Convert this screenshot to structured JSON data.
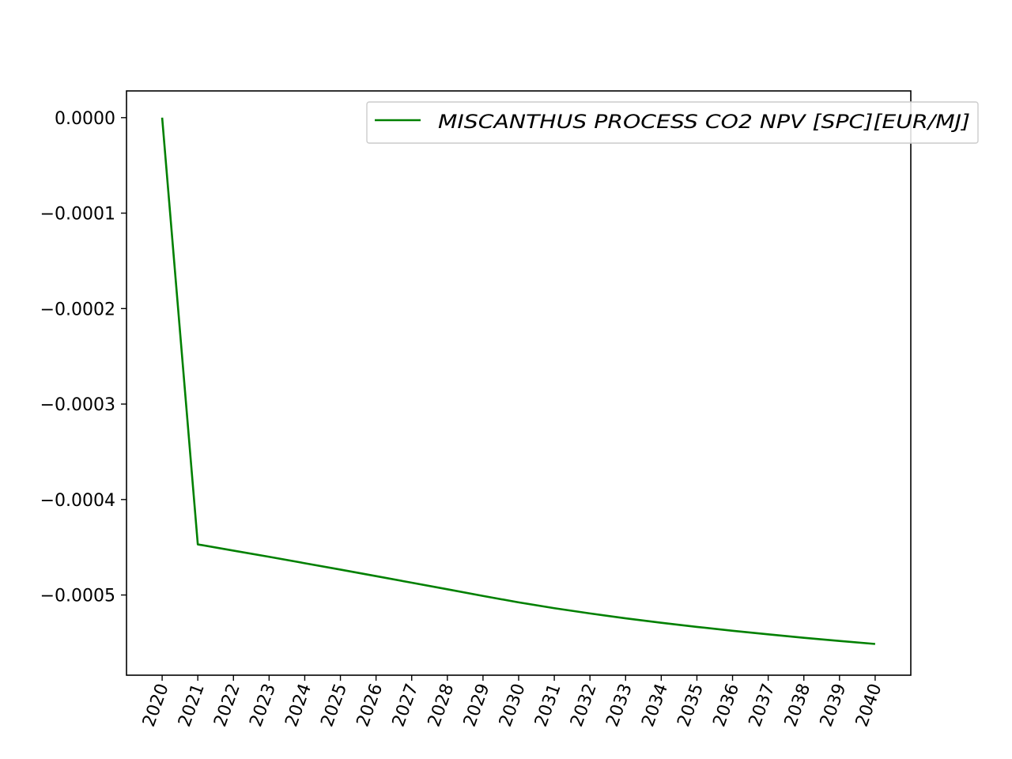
{
  "chart_data": {
    "type": "line",
    "x": [
      "2020",
      "2021",
      "2022",
      "2023",
      "2024",
      "2025",
      "2026",
      "2027",
      "2028",
      "2029",
      "2030",
      "2031",
      "2032",
      "2033",
      "2034",
      "2035",
      "2036",
      "2037",
      "2038",
      "2039",
      "2040"
    ],
    "series": [
      {
        "name": "MISCANTHUS PROCESS CO2 NPV [SPC][EUR/MJ]",
        "color": "#008000",
        "values": [
          0.0,
          -0.000447,
          -0.0004535,
          -0.00046,
          -0.0004667,
          -0.0004734,
          -0.0004802,
          -0.0004871,
          -0.000494,
          -0.000501,
          -0.0005077,
          -0.0005138,
          -0.0005193,
          -0.0005244,
          -0.0005291,
          -0.0005334,
          -0.0005375,
          -0.0005412,
          -0.0005448,
          -0.0005481,
          -0.0005513
        ]
      }
    ],
    "yticks": [
      0.0,
      -0.0001,
      -0.0002,
      -0.0003,
      -0.0004,
      -0.0005
    ],
    "ytick_labels": [
      "0.0000",
      "−0.0001",
      "−0.0002",
      "−0.0003",
      "−0.0004",
      "−0.0005"
    ],
    "ylim": [
      -0.000584,
      2.8e-05
    ],
    "xlim": [
      2019,
      2041
    ],
    "xlabel": "",
    "ylabel": "",
    "title": "",
    "legend_position": "top-right",
    "grid": false
  }
}
